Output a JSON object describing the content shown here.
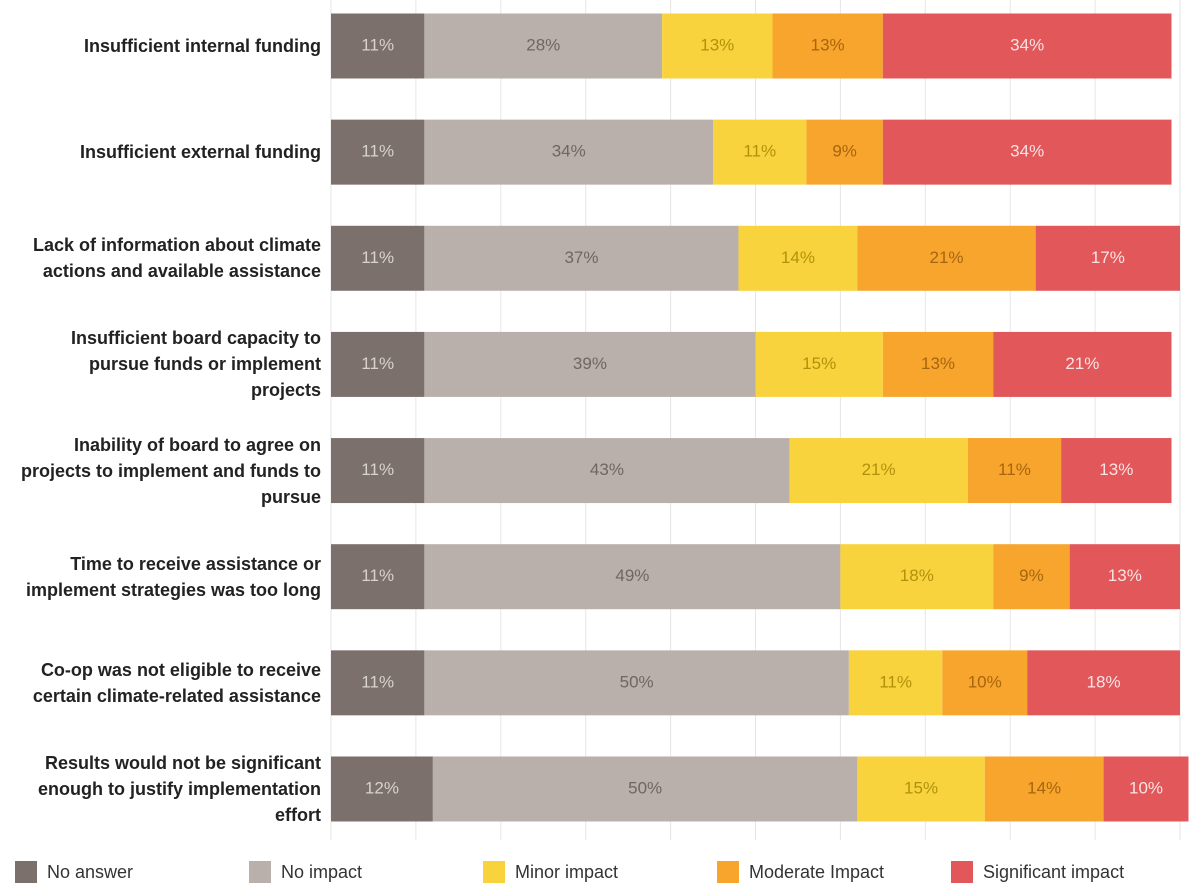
{
  "chart_data": {
    "type": "stacked_bar_horizontal",
    "categories": [
      "Insufficient internal funding",
      "Insufficient external funding",
      "Lack of information about climate actions and available assistance",
      "Insufficient board capacity to pursue funds or implement projects",
      "Inability of board to agree on projects to implement and funds to pursue",
      "Time to receive assistance or implement strategies was too long",
      "Co-op was not eligible to receive certain climate-related assistance",
      "Results would not be significant enough to justify implementation effort"
    ],
    "series": [
      {
        "name": "No answer",
        "color": "#7b706c",
        "values": [
          11,
          11,
          11,
          11,
          11,
          11,
          11,
          12
        ],
        "value_labels": [
          "11%",
          "11%",
          "11%",
          "11%",
          "11%",
          "11%",
          "11%",
          "12%"
        ]
      },
      {
        "name": "No impact",
        "color": "#bab0ab",
        "values": [
          28,
          34,
          37,
          39,
          43,
          49,
          50,
          50
        ],
        "value_labels": [
          "28%",
          "34%",
          "37%",
          "39%",
          "43%",
          "49%",
          "50%",
          "50%"
        ]
      },
      {
        "name": "Minor impact",
        "color": "#f9d33d",
        "values": [
          13,
          11,
          14,
          15,
          21,
          18,
          11,
          15
        ],
        "value_labels": [
          "13%",
          "11%",
          "14%",
          "15%",
          "21%",
          "18%",
          "11%",
          "15%"
        ]
      },
      {
        "name": "Moderate Impact",
        "color": "#f7a52c",
        "values": [
          13,
          9,
          21,
          13,
          11,
          9,
          10,
          14
        ],
        "value_labels": [
          "13%",
          "9%",
          "21%",
          "13%",
          "11%",
          "9%",
          "10%",
          "14%"
        ]
      },
      {
        "name": "Significant impact",
        "color": "#e1575a",
        "values": [
          34,
          34,
          17,
          21,
          13,
          13,
          18,
          10
        ],
        "value_labels": [
          "34%",
          "34%",
          "17%",
          "21%",
          "13%",
          "13%",
          "18%",
          "10%"
        ]
      }
    ],
    "xlim": [
      0,
      100
    ],
    "xticks": [
      0,
      10,
      20,
      30,
      40,
      50,
      60,
      70,
      80,
      90,
      100
    ],
    "grid": true,
    "legend": "bottom"
  }
}
